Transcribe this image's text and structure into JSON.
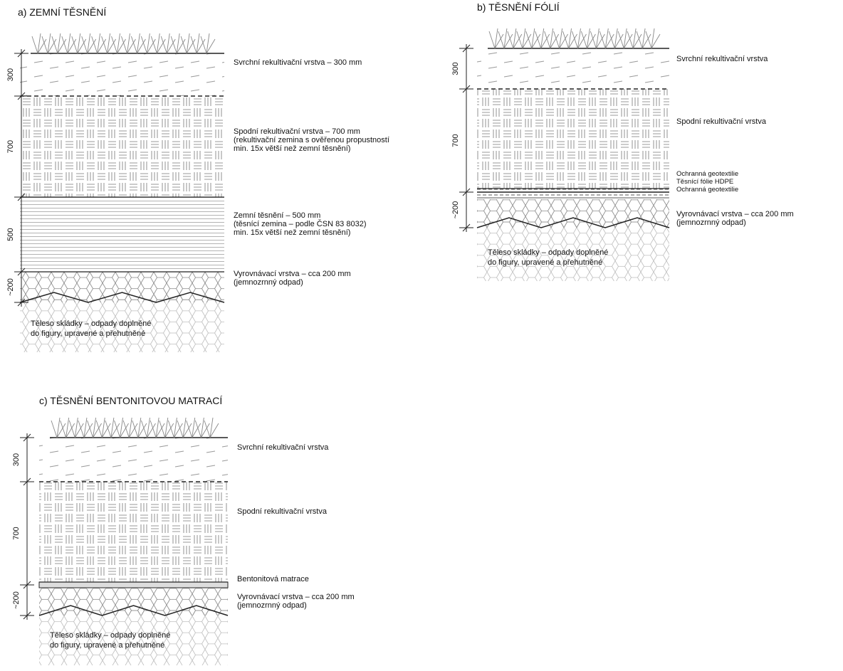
{
  "panels": [
    {
      "title": "a) ZEMNÍ TĚSNĚNÍ",
      "dimensions": [
        "300",
        "700",
        "500",
        "~200"
      ],
      "layers": [
        [
          "Svrchní rekultivační vrstva – 300 mm"
        ],
        [
          "Spodní rekultivační vrstva – 700 mm",
          "(rekultivační zemina s ověřenou propustností",
          "min. 15x větší než zemní těsnění)"
        ],
        [
          "Zemní těsnění – 500 mm",
          "(těsnící zemina – podle ČSN 83 8032)",
          "min. 15x větší než zemní těsnění)"
        ],
        [
          "Vyrovnávací vrstva – cca 200 mm",
          "(jemnozrnný odpad)"
        ]
      ],
      "body": [
        "Těleso skládky – odpady doplněné",
        "do figury, upravené a přehutněné"
      ]
    },
    {
      "title": "b) TĚSNĚNÍ FÓLIÍ",
      "dimensions": [
        "300",
        "700",
        "~200"
      ],
      "layers": [
        [
          "Svrchní rekultivační vrstva"
        ],
        [
          "Spodní rekultivační vrstva"
        ],
        [
          "Ochranná geotextilie",
          "Těsnící fólie HDPE",
          "Ochranná geotextilie"
        ],
        [
          "Vyrovnávací vrstva – cca 200 mm",
          "(jemnozrnný odpad)"
        ]
      ],
      "body": [
        "Těleso skládky – odpady doplněné",
        "do figury, upravené a přehutněné"
      ]
    },
    {
      "title": "c) TĚSNĚNÍ BENTONITOVOU MATRACÍ",
      "dimensions": [
        "300",
        "700",
        "~200"
      ],
      "layers": [
        [
          "Svrchní rekultivační vrstva"
        ],
        [
          "Spodní rekultivační vrstva"
        ],
        [
          "Bentonitová matrace"
        ],
        [
          "Vyrovnávací vrstva – cca 200 mm",
          "(jemnozrnný odpad)"
        ]
      ],
      "body": [
        "Těleso skládky – odpady doplněné",
        "do figury, upravené a přehutněné"
      ]
    }
  ]
}
